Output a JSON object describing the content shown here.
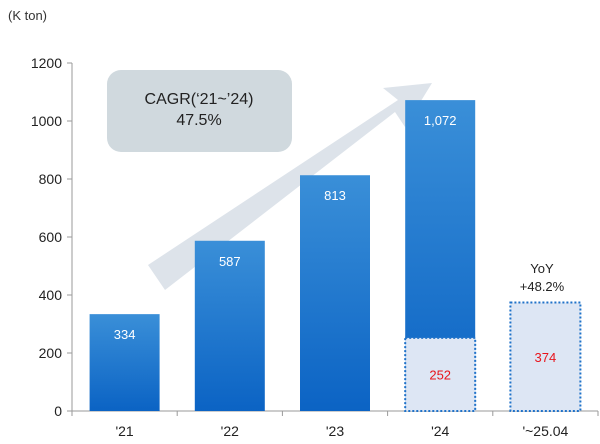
{
  "chart_data": {
    "type": "bar",
    "unit_label": "(K ton)",
    "categories": [
      "'21",
      "'22",
      "'23",
      "'24",
      "'~25.04"
    ],
    "series": [
      {
        "values": [
          334,
          587,
          813,
          1072,
          null
        ],
        "labels": [
          "334",
          "587",
          "813",
          "1,072",
          ""
        ]
      },
      {
        "values": [
          null,
          null,
          null,
          252,
          374
        ],
        "labels": [
          "",
          "",
          "",
          "252",
          "374"
        ]
      }
    ],
    "ylim": [
      0,
      1200
    ],
    "yticks": [
      0,
      200,
      400,
      600,
      800,
      1000,
      1200
    ],
    "cagr": {
      "line1": "CAGR(‘21~’24)",
      "line2": "47.5%"
    },
    "yoy": {
      "line1": "YoY",
      "line2": "+48.2%"
    },
    "colors": {
      "bar_top": "#3a8fd8",
      "bar_bottom": "#0b63c4",
      "partial_fill": "#dde6f4",
      "partial_border": "#1f72c9",
      "partial_value": "#e8141c",
      "cagr_box": "#d0d9de",
      "arrow": "#dde3ea"
    },
    "grid": false
  }
}
